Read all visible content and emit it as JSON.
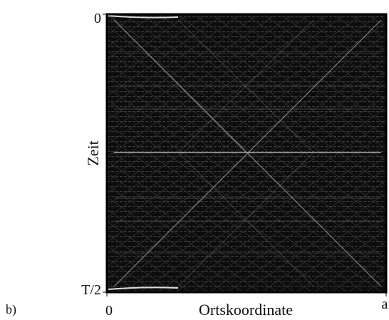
{
  "figure": {
    "label": "b)",
    "x_axis": {
      "label": "Ortskoordinate",
      "start": "0",
      "end": "a"
    },
    "y_axis": {
      "label": "Zeit",
      "start": "0",
      "end": "T/2"
    }
  }
}
